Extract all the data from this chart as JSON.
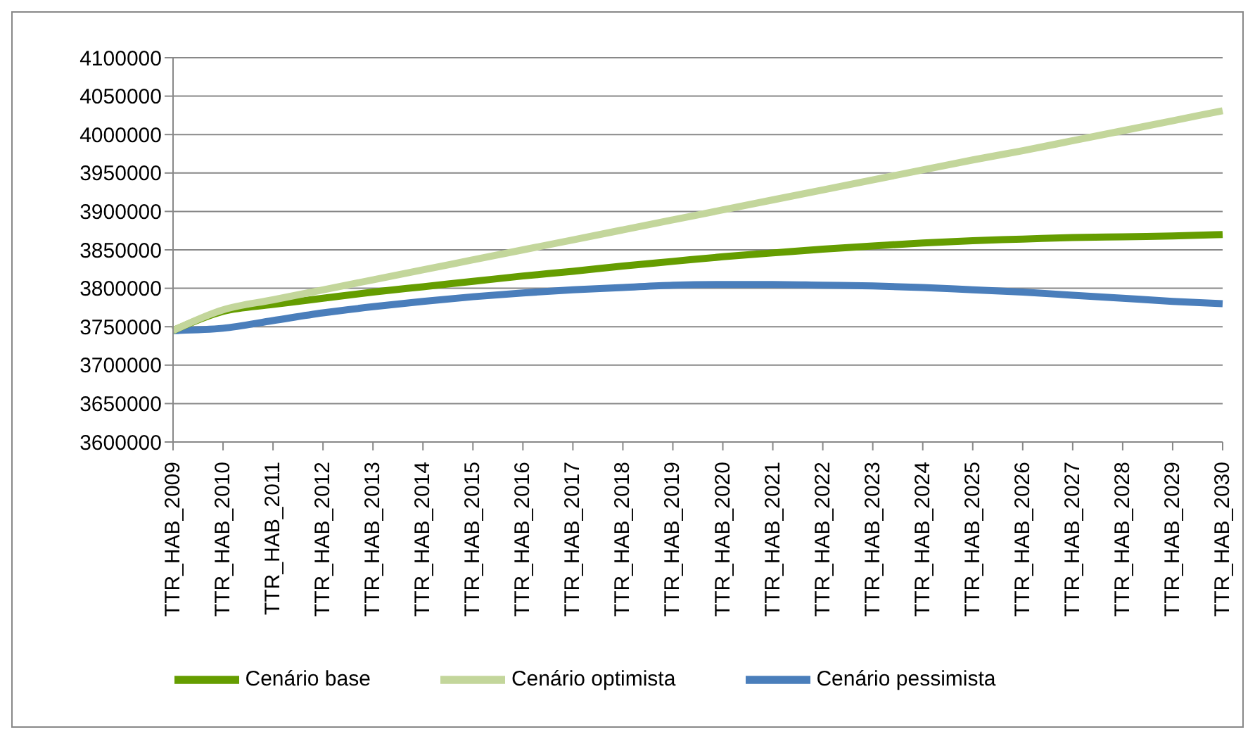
{
  "chart_data": {
    "type": "line",
    "categories": [
      "TTR_HAB_2009",
      "TTR_HAB_2010",
      "TTR_HAB_2011",
      "TTR_HAB_2012",
      "TTR_HAB_2013",
      "TTR_HAB_2014",
      "TTR_HAB_2015",
      "TTR_HAB_2016",
      "TTR_HAB_2017",
      "TTR_HAB_2018",
      "TTR_HAB_2019",
      "TTR_HAB_2020",
      "TTR_HAB_2021",
      "TTR_HAB_2022",
      "TTR_HAB_2023",
      "TTR_HAB_2024",
      "TTR_HAB_2025",
      "TTR_HAB_2026",
      "TTR_HAB_2027",
      "TTR_HAB_2028",
      "TTR_HAB_2029",
      "TTR_HAB_2030"
    ],
    "series": [
      {
        "name": "Cenário pessimista",
        "color": "#4a7ebb",
        "values": [
          3745000,
          3748000,
          3758000,
          3768000,
          3776000,
          3783000,
          3789000,
          3794000,
          3798000,
          3801000,
          3804000,
          3805000,
          3805000,
          3804000,
          3803000,
          3801000,
          3798000,
          3795000,
          3791000,
          3787000,
          3783000,
          3780000
        ]
      },
      {
        "name": "Cenário base",
        "color": "#659d00",
        "values": [
          3745000,
          3770000,
          3779000,
          3787000,
          3795000,
          3802000,
          3809000,
          3816000,
          3822000,
          3829000,
          3835000,
          3841000,
          3846000,
          3851000,
          3855000,
          3859000,
          3862000,
          3864000,
          3866000,
          3867000,
          3868000,
          3870000
        ]
      },
      {
        "name": "Cenário optimista",
        "color": "#c3d69b",
        "values": [
          3745000,
          3772000,
          3785000,
          3798000,
          3811000,
          3824000,
          3837000,
          3850000,
          3863000,
          3876000,
          3889000,
          3902000,
          3915000,
          3928000,
          3941000,
          3954000,
          3967000,
          3979000,
          3992000,
          4005000,
          4018000,
          4031000
        ]
      }
    ],
    "ylim": [
      3600000,
      4100000
    ],
    "yticks": [
      3600000,
      3650000,
      3700000,
      3750000,
      3800000,
      3850000,
      3900000,
      3950000,
      4000000,
      4050000,
      4100000
    ],
    "grid": "y",
    "legend": "bottom",
    "marker": "none",
    "line_style": "solid"
  }
}
